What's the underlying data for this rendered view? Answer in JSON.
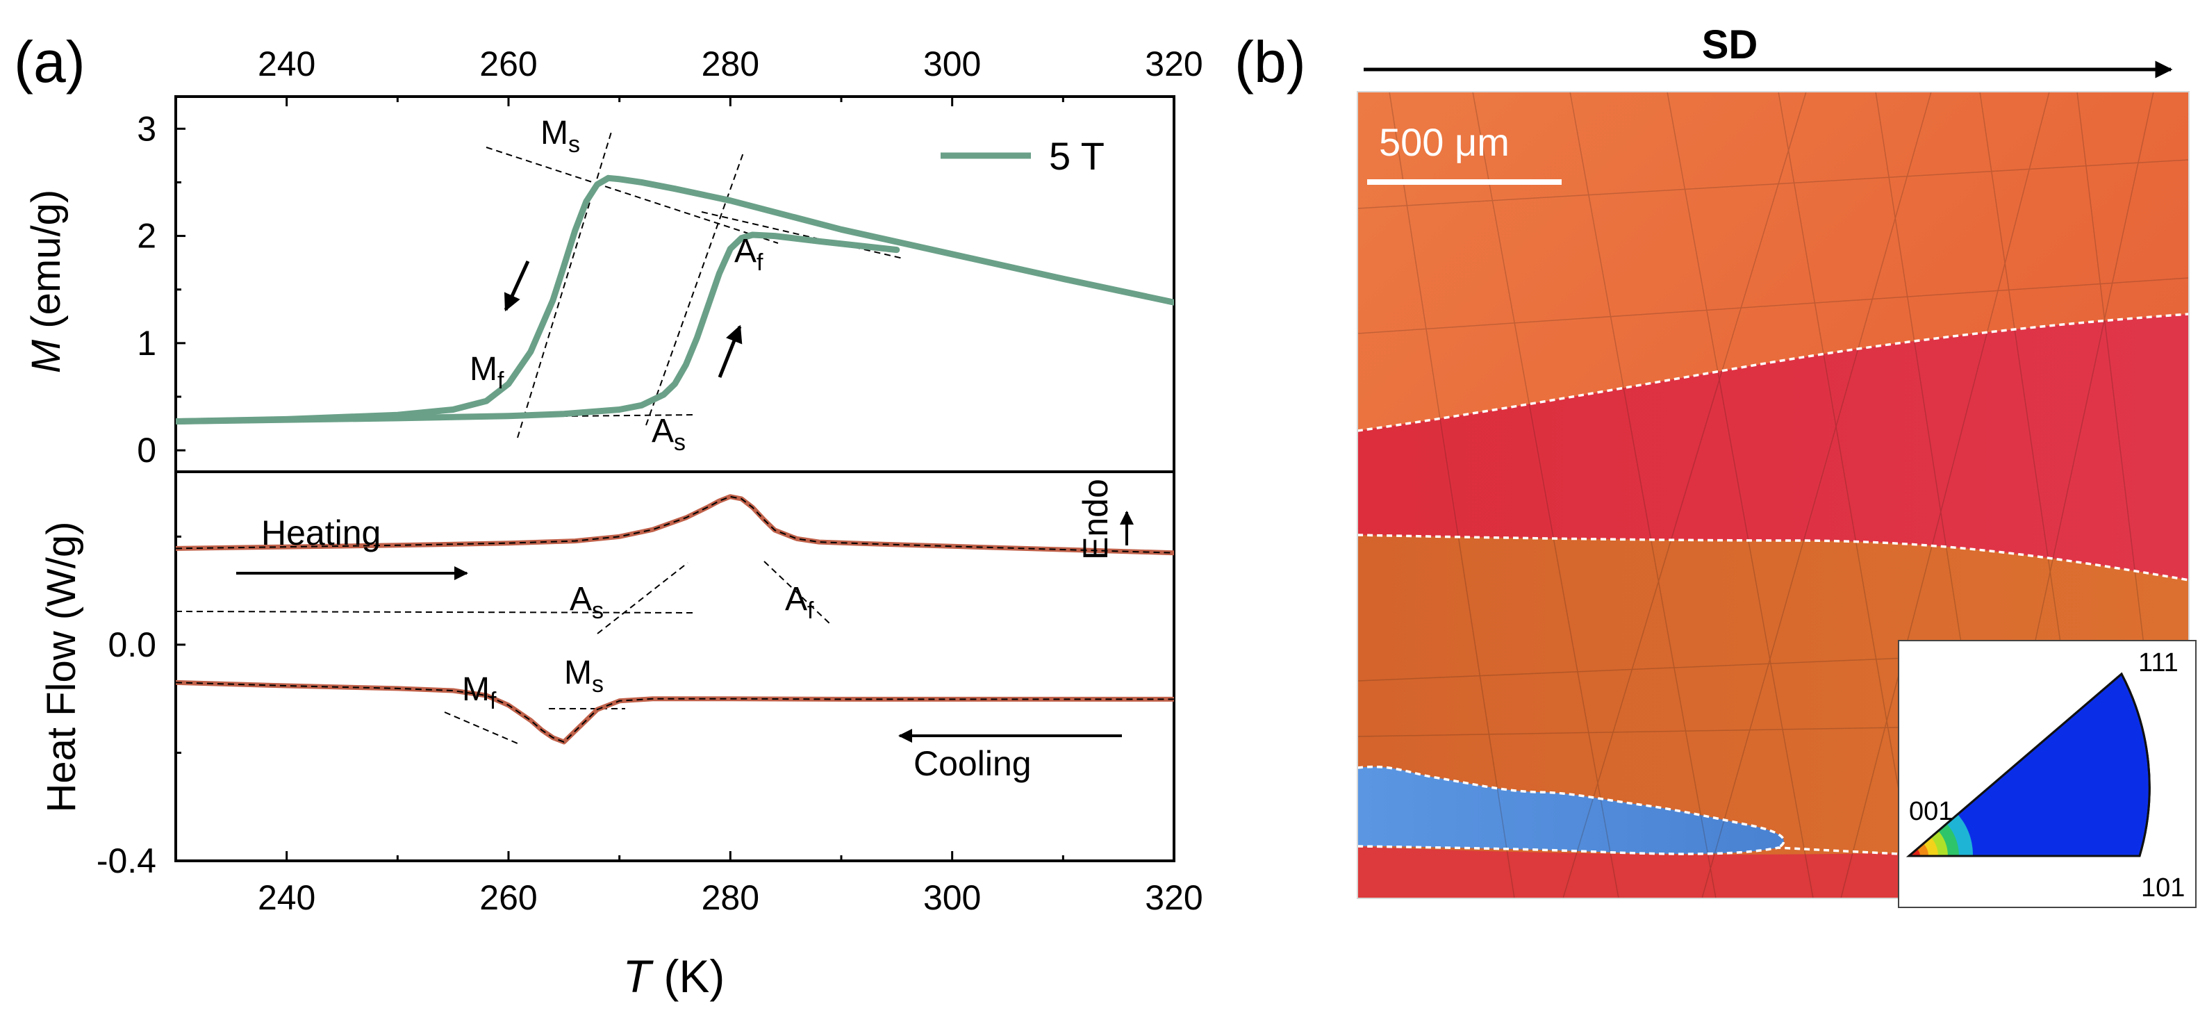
{
  "panel_a": {
    "label": "(a)",
    "axis_label": "T",
    "axis_unit": " (K)",
    "m_label_var": "M",
    "m_label_unit": " (emu/g)",
    "hf_label": "Heat Flow (W/g)",
    "legend": "5 T",
    "heating": "Heating",
    "cooling": "Cooling",
    "endo": "Endo"
  },
  "panel_b": {
    "label": "(b)",
    "direction": "SD",
    "scale_bar": "500 μm",
    "ipf_labels": {
      "c001": "001",
      "c101": "101",
      "c111": "111"
    }
  },
  "chart_data": [
    {
      "type": "line",
      "title": "",
      "xlabel": "T (K)",
      "ylabel": "M (emu/g)",
      "xlim": [
        230,
        320
      ],
      "ylim": [
        -0.2,
        3.3
      ],
      "xticks": [
        240,
        260,
        280,
        300,
        320
      ],
      "yticks": [
        0,
        1,
        2,
        3
      ],
      "series": [
        {
          "name": "5 T cooling",
          "x": [
            230,
            240,
            250,
            255,
            258,
            260,
            262,
            264,
            265,
            266,
            267,
            268,
            269,
            270,
            272,
            275,
            280,
            290,
            300,
            310,
            320
          ],
          "y": [
            0.27,
            0.29,
            0.33,
            0.38,
            0.46,
            0.62,
            0.92,
            1.4,
            1.72,
            2.05,
            2.32,
            2.48,
            2.54,
            2.53,
            2.5,
            2.44,
            2.33,
            2.06,
            1.83,
            1.6,
            1.38
          ]
        },
        {
          "name": "5 T heating",
          "x": [
            230,
            250,
            260,
            265,
            270,
            272,
            274,
            275,
            276,
            277,
            278,
            279,
            280,
            281,
            282,
            284,
            288,
            295
          ],
          "y": [
            0.27,
            0.3,
            0.32,
            0.34,
            0.38,
            0.42,
            0.52,
            0.62,
            0.8,
            1.05,
            1.35,
            1.65,
            1.88,
            1.98,
            2.01,
            2.0,
            1.95,
            1.87
          ]
        }
      ],
      "annotations": [
        "Ms",
        "Mf",
        "As",
        "Af"
      ]
    },
    {
      "type": "line",
      "title": "",
      "xlabel": "T (K)",
      "ylabel": "Heat Flow (W/g)",
      "xlim": [
        230,
        320
      ],
      "ylim": [
        -0.4,
        0.32
      ],
      "xticks": [
        240,
        260,
        280,
        300,
        320
      ],
      "yticks": [
        0.0,
        -0.4
      ],
      "yticklabels": [
        "0.0",
        "-0.4"
      ],
      "series": [
        {
          "name": "Heating",
          "x": [
            230,
            240,
            250,
            260,
            266,
            270,
            273,
            276,
            278,
            279,
            280,
            281,
            282,
            283,
            284,
            286,
            288,
            292,
            300,
            310,
            320
          ],
          "y": [
            0.178,
            0.181,
            0.184,
            0.188,
            0.192,
            0.2,
            0.213,
            0.235,
            0.255,
            0.266,
            0.274,
            0.27,
            0.254,
            0.232,
            0.212,
            0.196,
            0.19,
            0.187,
            0.182,
            0.176,
            0.17
          ]
        },
        {
          "name": "Cooling",
          "x": [
            230,
            240,
            250,
            255,
            258,
            260,
            262,
            263,
            264,
            265,
            266,
            267,
            268,
            270,
            273,
            280,
            290,
            300,
            320
          ],
          "y": [
            -0.07,
            -0.076,
            -0.081,
            -0.085,
            -0.094,
            -0.112,
            -0.14,
            -0.158,
            -0.172,
            -0.18,
            -0.16,
            -0.14,
            -0.12,
            -0.104,
            -0.1,
            -0.1,
            -0.101,
            -0.101,
            -0.101
          ]
        }
      ],
      "annotations": [
        "As",
        "Af",
        "Mf",
        "Ms"
      ]
    }
  ],
  "colors": {
    "m_curve": "#6aa088",
    "hf_curve": "#c0614a",
    "grain_top": "#e86a3a",
    "grain_red": "#dc3040",
    "grain_orange": "#d9692c",
    "grain_blue": "#5089d8",
    "ipf_blue": "#0a2ee8"
  }
}
